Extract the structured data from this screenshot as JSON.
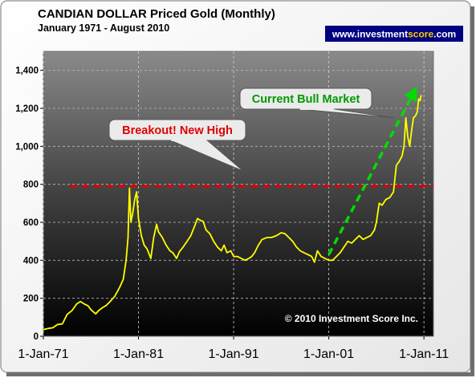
{
  "chart_data": {
    "type": "line",
    "title": "CANDIAN DOLLAR Priced Gold (Monthly)",
    "subtitle": "January 1971 - August 2010",
    "website": "www.investmentscore.com",
    "copyright": "© 2010 Investment Score Inc.",
    "xlabel": "",
    "ylabel": "",
    "x_ticks": [
      {
        "x": 1971.0,
        "label": "1-Jan-71"
      },
      {
        "x": 1981.0,
        "label": "1-Jan-81"
      },
      {
        "x": 1991.0,
        "label": "1-Jan-91"
      },
      {
        "x": 2001.0,
        "label": "1-Jan-01"
      },
      {
        "x": 2011.0,
        "label": "1-Jan-11"
      }
    ],
    "y_ticks": [
      0,
      200,
      400,
      600,
      800,
      1000,
      1200,
      1400
    ],
    "y_tick_labels": [
      "0",
      "200",
      "400",
      "600",
      "800",
      "1,000",
      "1,200",
      "1,400"
    ],
    "xlim": [
      1971.0,
      2012.0
    ],
    "ylim": [
      0,
      1500
    ],
    "grid": {
      "x": true,
      "y": true
    },
    "colors": {
      "price_line": "#ffff00",
      "high_line": "#e00000",
      "trend_arrow": "#00dd00",
      "callout_breakout_text": "#e00000",
      "callout_bull_text": "#009900",
      "website_bg": "#000080",
      "website_text": "#ffffff",
      "website_accent": "#ffcc00"
    },
    "series": [
      {
        "values": [
          [
            1971.0,
            35
          ],
          [
            1971.5,
            41
          ],
          [
            1972.0,
            45
          ],
          [
            1972.5,
            62
          ],
          [
            1973.0,
            65
          ],
          [
            1973.5,
            115
          ],
          [
            1974.0,
            135
          ],
          [
            1974.5,
            170
          ],
          [
            1974.9,
            183
          ],
          [
            1975.3,
            170
          ],
          [
            1975.7,
            160
          ],
          [
            1976.0,
            140
          ],
          [
            1976.5,
            118
          ],
          [
            1976.8,
            135
          ],
          [
            1977.2,
            150
          ],
          [
            1977.6,
            162
          ],
          [
            1978.0,
            182
          ],
          [
            1978.5,
            210
          ],
          [
            1979.0,
            255
          ],
          [
            1979.4,
            300
          ],
          [
            1979.7,
            400
          ],
          [
            1979.9,
            520
          ],
          [
            1980.05,
            780
          ],
          [
            1980.2,
            600
          ],
          [
            1980.4,
            650
          ],
          [
            1980.6,
            720
          ],
          [
            1980.8,
            760
          ],
          [
            1981.0,
            620
          ],
          [
            1981.3,
            530
          ],
          [
            1981.6,
            480
          ],
          [
            1981.9,
            460
          ],
          [
            1982.3,
            410
          ],
          [
            1982.6,
            520
          ],
          [
            1982.9,
            590
          ],
          [
            1983.1,
            550
          ],
          [
            1983.5,
            520
          ],
          [
            1983.9,
            480
          ],
          [
            1984.3,
            450
          ],
          [
            1984.6,
            440
          ],
          [
            1985.0,
            410
          ],
          [
            1985.3,
            445
          ],
          [
            1985.7,
            470
          ],
          [
            1986.1,
            500
          ],
          [
            1986.5,
            530
          ],
          [
            1986.9,
            580
          ],
          [
            1987.2,
            620
          ],
          [
            1987.5,
            610
          ],
          [
            1987.8,
            605
          ],
          [
            1988.1,
            560
          ],
          [
            1988.5,
            540
          ],
          [
            1988.9,
            500
          ],
          [
            1989.3,
            470
          ],
          [
            1989.7,
            450
          ],
          [
            1990.0,
            480
          ],
          [
            1990.3,
            440
          ],
          [
            1990.7,
            450
          ],
          [
            1991.0,
            420
          ],
          [
            1991.4,
            420
          ],
          [
            1991.8,
            410
          ],
          [
            1992.2,
            400
          ],
          [
            1992.6,
            410
          ],
          [
            1992.9,
            420
          ],
          [
            1993.2,
            440
          ],
          [
            1993.6,
            480
          ],
          [
            1994.0,
            510
          ],
          [
            1994.5,
            520
          ],
          [
            1995.0,
            520
          ],
          [
            1995.5,
            530
          ],
          [
            1996.0,
            545
          ],
          [
            1996.4,
            540
          ],
          [
            1996.8,
            520
          ],
          [
            1997.2,
            500
          ],
          [
            1997.6,
            470
          ],
          [
            1998.0,
            450
          ],
          [
            1998.4,
            440
          ],
          [
            1998.8,
            430
          ],
          [
            1999.2,
            420
          ],
          [
            1999.5,
            390
          ],
          [
            1999.8,
            450
          ],
          [
            2000.2,
            420
          ],
          [
            2000.6,
            410
          ],
          [
            2001.0,
            400
          ],
          [
            2001.4,
            400
          ],
          [
            2001.8,
            420
          ],
          [
            2002.2,
            440
          ],
          [
            2002.6,
            470
          ],
          [
            2003.0,
            500
          ],
          [
            2003.4,
            490
          ],
          [
            2003.8,
            510
          ],
          [
            2004.2,
            530
          ],
          [
            2004.6,
            510
          ],
          [
            2005.0,
            520
          ],
          [
            2005.4,
            530
          ],
          [
            2005.8,
            560
          ],
          [
            2006.0,
            600
          ],
          [
            2006.3,
            700
          ],
          [
            2006.6,
            690
          ],
          [
            2007.0,
            720
          ],
          [
            2007.4,
            730
          ],
          [
            2007.8,
            760
          ],
          [
            2008.1,
            900
          ],
          [
            2008.4,
            920
          ],
          [
            2008.7,
            950
          ],
          [
            2008.9,
            1000
          ],
          [
            2009.1,
            1150
          ],
          [
            2009.3,
            1050
          ],
          [
            2009.5,
            1000
          ],
          [
            2009.7,
            1080
          ],
          [
            2009.9,
            1150
          ],
          [
            2010.1,
            1160
          ],
          [
            2010.3,
            1180
          ],
          [
            2010.45,
            1250
          ],
          [
            2010.6,
            1240
          ],
          [
            2010.7,
            1270
          ]
        ]
      },
      {
        "type": "hline",
        "y": 790
      },
      {
        "type": "arrow",
        "from": [
          2001.0,
          430
        ],
        "to": [
          2010.0,
          1290
        ]
      }
    ],
    "annotations": [
      {
        "text": "Breakout! New High",
        "pointer_to": [
          1992.0,
          870
        ]
      },
      {
        "text": "Current Bull Market",
        "pointer_to": [
          2007.9,
          1150
        ]
      }
    ]
  }
}
